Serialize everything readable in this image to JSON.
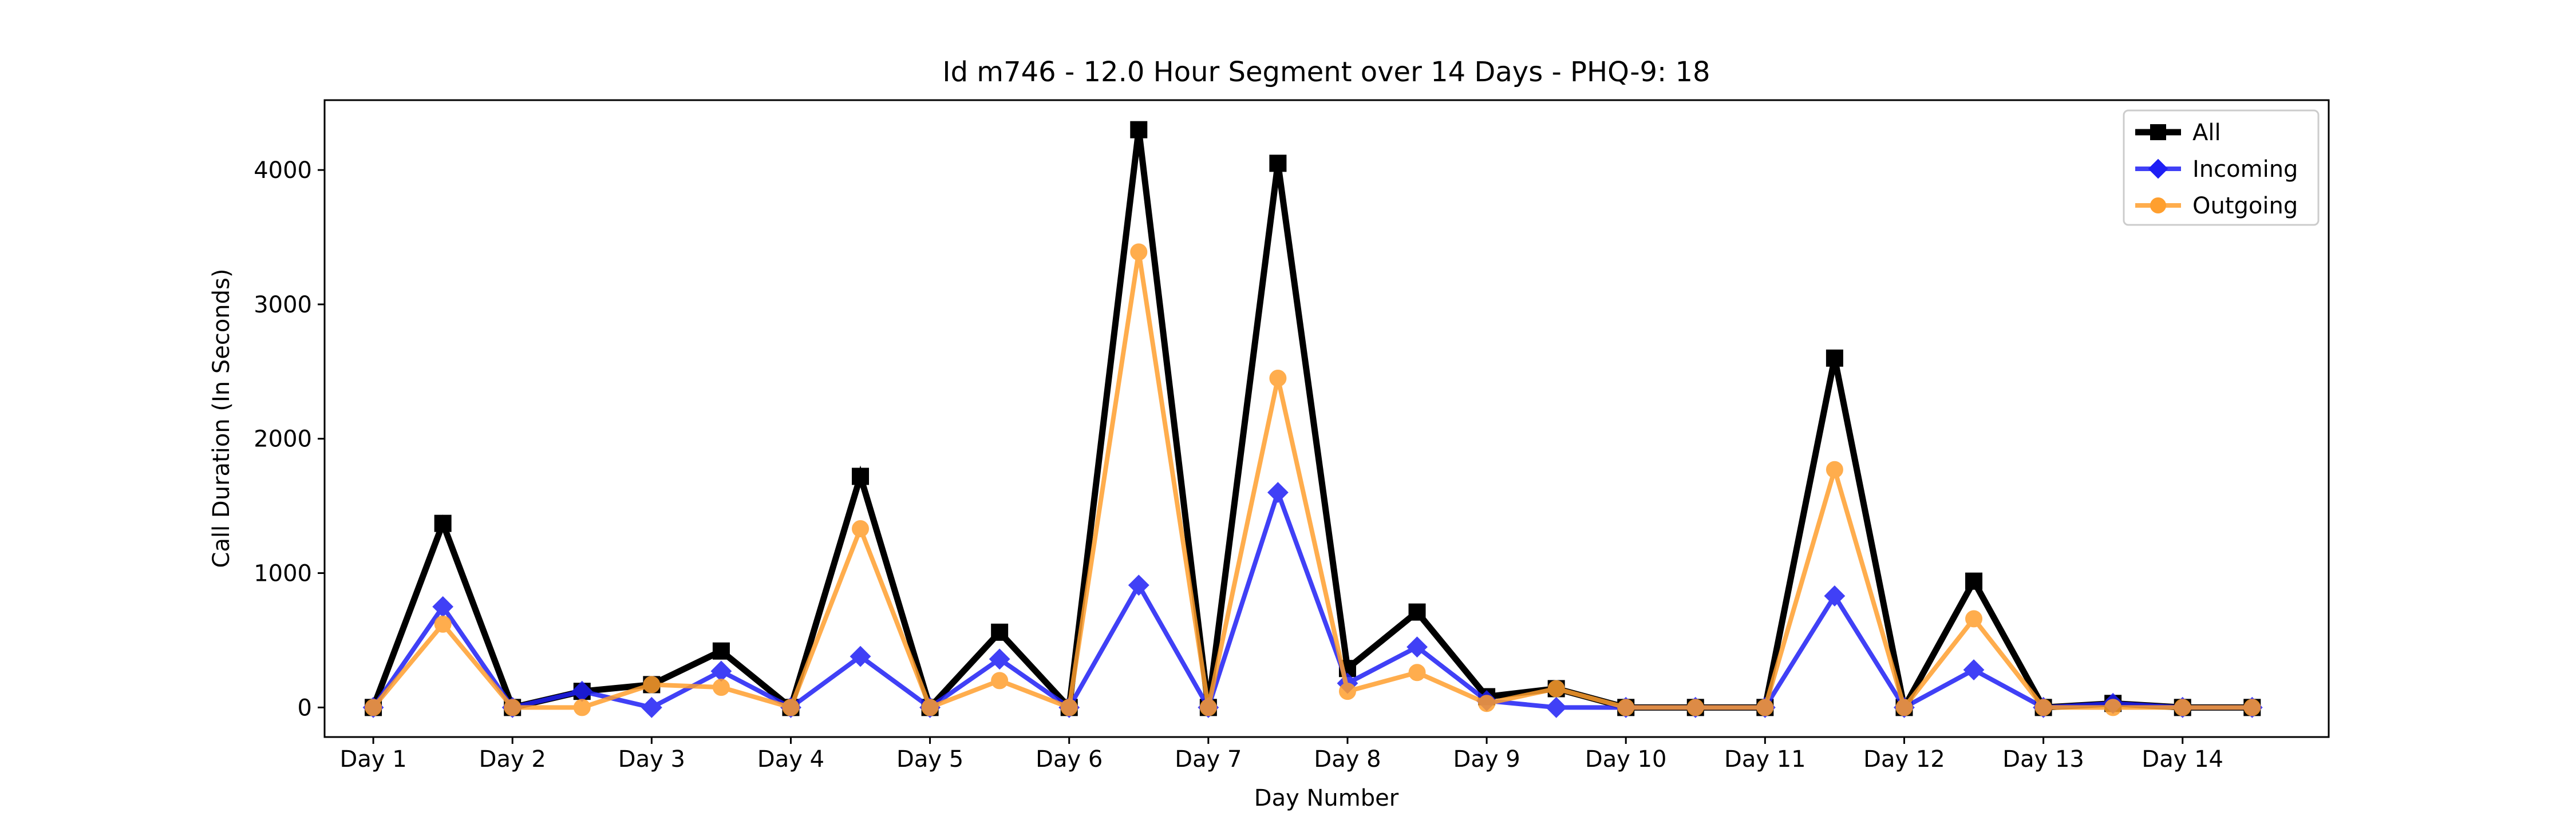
{
  "chart_data": {
    "type": "line",
    "title": "Id m746 - 12.0 Hour Segment over 14 Days - PHQ-9: 18",
    "xlabel": "Day Number",
    "ylabel": "Call Duration (In Seconds)",
    "x_range": [
      -0.7,
      28.1
    ],
    "ylim": [
      -220,
      4520
    ],
    "yticks": [
      0,
      1000,
      2000,
      3000,
      4000
    ],
    "xticks": [
      0,
      2,
      4,
      6,
      8,
      10,
      12,
      14,
      16,
      18,
      20,
      22,
      24,
      26
    ],
    "xtick_labels": [
      "Day 1",
      "Day 2",
      "Day 3",
      "Day 4",
      "Day 5",
      "Day 6",
      "Day 7",
      "Day 8",
      "Day 9",
      "Day 10",
      "Day 11",
      "Day 12",
      "Day 13",
      "Day 14"
    ],
    "x": [
      0,
      1,
      2,
      3,
      4,
      5,
      6,
      7,
      8,
      9,
      10,
      11,
      12,
      13,
      14,
      15,
      16,
      17,
      18,
      19,
      20,
      21,
      22,
      23,
      24,
      25,
      26,
      27
    ],
    "legend_position": "top-right",
    "series": [
      {
        "name": "All",
        "color": "#000000",
        "marker": "square",
        "values": [
          0,
          1370,
          0,
          120,
          170,
          420,
          0,
          1720,
          0,
          560,
          0,
          4300,
          0,
          4050,
          290,
          710,
          80,
          140,
          0,
          0,
          0,
          2600,
          0,
          940,
          0,
          30,
          0,
          0
        ]
      },
      {
        "name": "Incoming",
        "color": "#1f1ff5",
        "marker": "diamond",
        "values": [
          0,
          750,
          0,
          120,
          0,
          270,
          0,
          380,
          0,
          360,
          0,
          910,
          0,
          1600,
          180,
          450,
          50,
          0,
          0,
          0,
          0,
          830,
          0,
          280,
          0,
          30,
          0,
          0
        ]
      },
      {
        "name": "Outgoing",
        "color": "#ff9f2e",
        "marker": "circle",
        "values": [
          0,
          620,
          0,
          0,
          170,
          150,
          0,
          1330,
          0,
          200,
          0,
          3390,
          0,
          2450,
          120,
          260,
          30,
          140,
          0,
          0,
          0,
          1770,
          0,
          660,
          0,
          0,
          0,
          0
        ]
      }
    ]
  }
}
